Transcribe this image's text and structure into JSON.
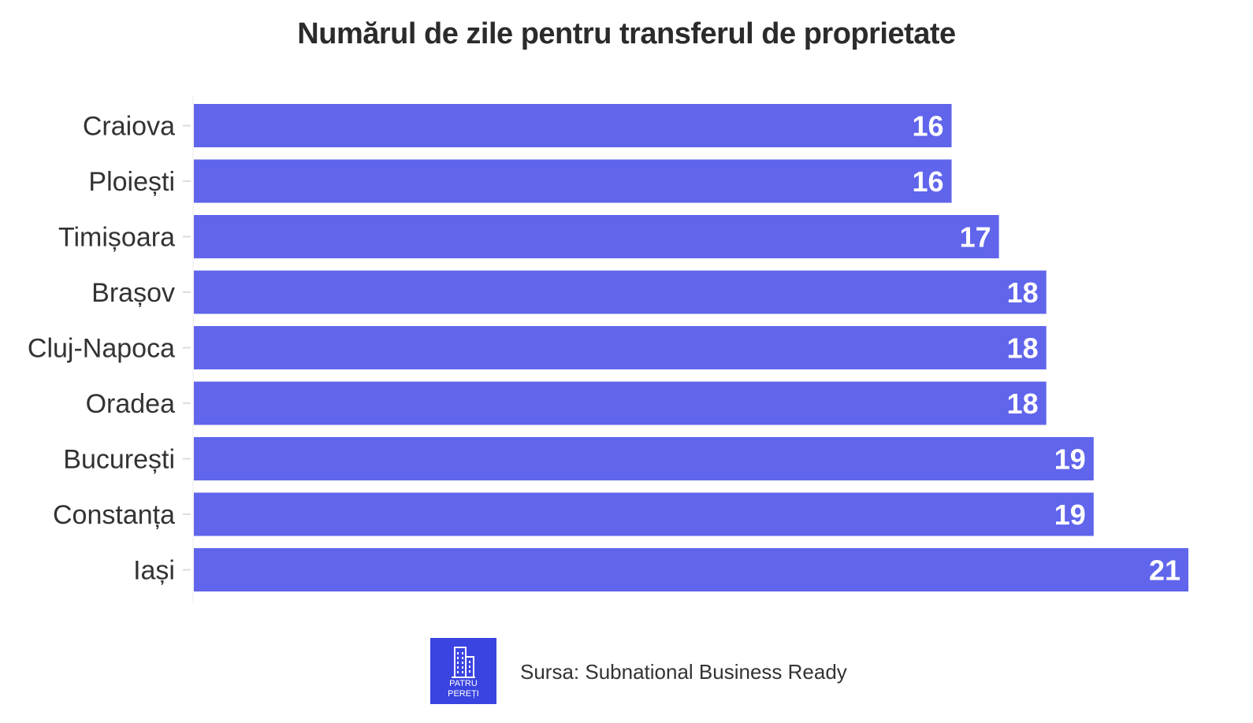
{
  "chart_data": {
    "type": "bar",
    "orientation": "horizontal",
    "title": "Numărul de zile pentru transferul de proprietate",
    "categories": [
      "Craiova",
      "Ploiești",
      "Timișoara",
      "Brașov",
      "Cluj-Napoca",
      "Oradea",
      "București",
      "Constanța",
      "Iași"
    ],
    "values": [
      16,
      16,
      17,
      18,
      18,
      18,
      19,
      19,
      21
    ],
    "xlim": [
      0,
      21
    ],
    "grid": false,
    "bar_color": "#6065eb",
    "data_labels": true
  },
  "footer": {
    "logo_line1": "PATRU",
    "logo_line2": "PEREȚI",
    "source": "Sursa: Subnational Business Ready"
  },
  "colors": {
    "logo_bg": "#3a44e0"
  }
}
